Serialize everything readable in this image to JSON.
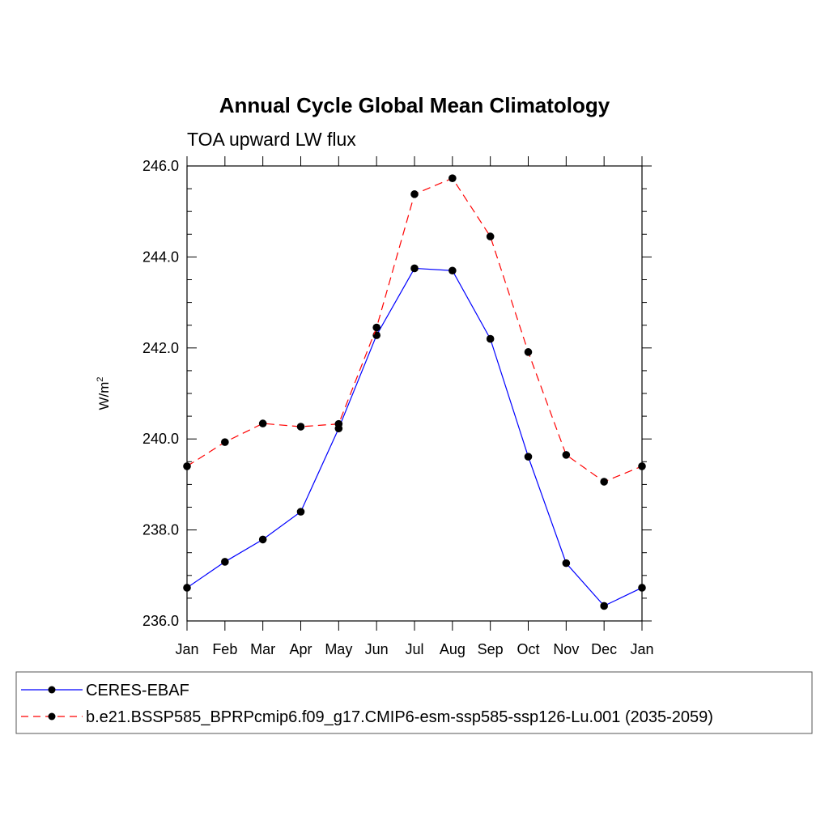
{
  "chart_data": {
    "type": "line",
    "title": "Annual Cycle Global Mean Climatology",
    "subtitle": "TOA upward LW flux",
    "ylabel": "W/m",
    "ylabel_superscript": "2",
    "categories": [
      "Jan",
      "Feb",
      "Mar",
      "Apr",
      "May",
      "Jun",
      "Jul",
      "Aug",
      "Sep",
      "Oct",
      "Nov",
      "Dec",
      "Jan"
    ],
    "ylim": [
      236.0,
      246.0
    ],
    "yticks": [
      "236.0",
      "238.0",
      "240.0",
      "242.0",
      "244.0",
      "246.0"
    ],
    "grid": false,
    "legend_position": "bottom",
    "series": [
      {
        "name": "CERES-EBAF",
        "color": "#0000ff",
        "line_style": "solid",
        "marker": "filled-circle",
        "values": [
          236.73,
          237.3,
          237.79,
          238.4,
          240.23,
          242.28,
          243.75,
          243.7,
          242.2,
          239.61,
          237.27,
          236.33,
          236.73
        ]
      },
      {
        "name": "b.e21.BSSP585_BPRPcmip6.f09_g17.CMIP6-esm-ssp585-ssp126-Lu.001 (2035-2059)",
        "color": "#ff0000",
        "line_style": "dashed",
        "marker": "filled-circle",
        "values": [
          239.4,
          239.93,
          240.34,
          240.27,
          240.33,
          242.45,
          245.38,
          245.73,
          244.45,
          241.91,
          239.65,
          239.06,
          239.4
        ]
      }
    ]
  }
}
